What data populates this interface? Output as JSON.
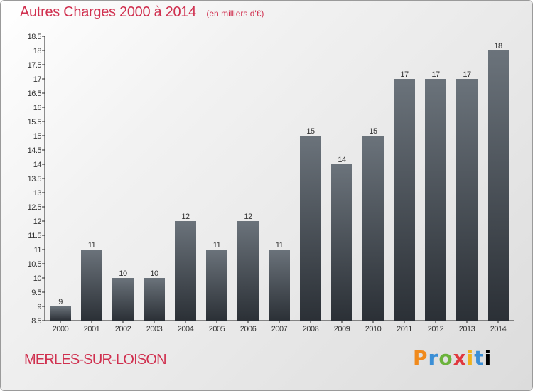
{
  "header": {
    "title": "Autres Charges 2000 à 2014",
    "subtitle": "(en milliers d'€)"
  },
  "footer": {
    "commune": "MERLES-SUR-LOISON",
    "logo_letters": [
      "P",
      "r",
      "o",
      "x",
      "i",
      "t",
      "i"
    ]
  },
  "colors": {
    "title": "#d0304f",
    "bar_top": "#6b737b",
    "bar_bottom": "#2b3036"
  },
  "chart_data": {
    "type": "bar",
    "title": "Autres Charges 2000 à 2014",
    "subtitle": "(en milliers d'€)",
    "xlabel": "",
    "ylabel": "",
    "categories": [
      "2000",
      "2001",
      "2002",
      "2003",
      "2004",
      "2005",
      "2006",
      "2007",
      "2008",
      "2009",
      "2010",
      "2011",
      "2012",
      "2013",
      "2014"
    ],
    "values": [
      9,
      11,
      10,
      10,
      12,
      11,
      12,
      11,
      15,
      14,
      15,
      17,
      17,
      17,
      18
    ],
    "data_labels": [
      "9",
      "11",
      "10",
      "10",
      "12",
      "11",
      "12",
      "11",
      "15",
      "14",
      "15",
      "17",
      "17",
      "17",
      "18"
    ],
    "ylim": [
      8.5,
      18.5
    ],
    "yticks": [
      8.5,
      9,
      9.5,
      10,
      10.5,
      11,
      11.5,
      12,
      12.5,
      13,
      13.5,
      14,
      14.5,
      15,
      15.5,
      16,
      16.5,
      17,
      17.5,
      18,
      18.5
    ],
    "ytick_labels": [
      "8.5",
      "9",
      "9.5",
      "10",
      "10.5",
      "11",
      "11.5",
      "12",
      "12.5",
      "13",
      "13.5",
      "14",
      "14.5",
      "15",
      "15.5",
      "16",
      "16.5",
      "17",
      "17.5",
      "18",
      "18.5"
    ],
    "grid": false,
    "legend": "none"
  }
}
